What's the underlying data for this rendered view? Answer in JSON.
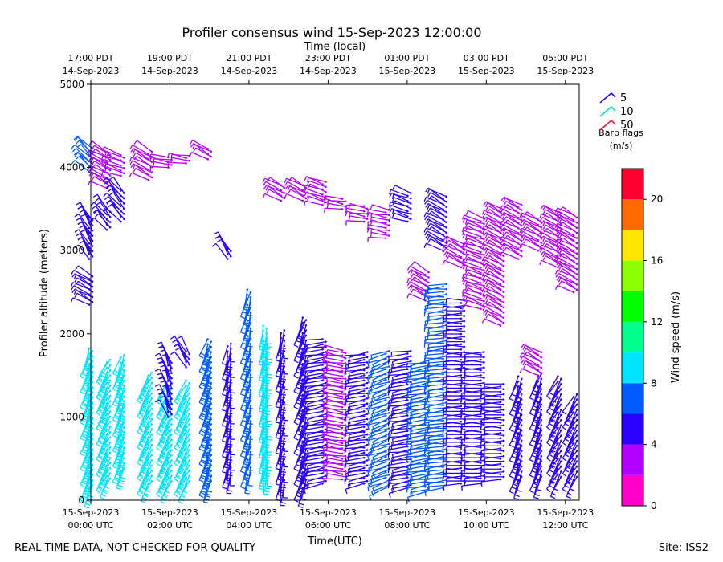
{
  "chart_data": {
    "type": "wind_barb_profile",
    "title": "Profiler consensus wind 15-Sep-2023 12:00:00",
    "top_axis_label": "Time (local)",
    "xlabel": "Time(UTC)",
    "ylabel": "Profiler altitude (meters)",
    "ylim": [
      0,
      5000
    ],
    "xlim_hours_utc": [
      0,
      12.35
    ],
    "y_ticks": [
      0,
      1000,
      2000,
      3000,
      4000,
      5000
    ],
    "x_ticks": [
      {
        "h": 0,
        "line1": "15-Sep-2023",
        "line2": "00:00 UTC"
      },
      {
        "h": 2,
        "line1": "15-Sep-2023",
        "line2": "02:00 UTC"
      },
      {
        "h": 4,
        "line1": "15-Sep-2023",
        "line2": "04:00 UTC"
      },
      {
        "h": 6,
        "line1": "15-Sep-2023",
        "line2": "06:00 UTC"
      },
      {
        "h": 8,
        "line1": "15-Sep-2023",
        "line2": "08:00 UTC"
      },
      {
        "h": 10,
        "line1": "15-Sep-2023",
        "line2": "10:00 UTC"
      },
      {
        "h": 12,
        "line1": "15-Sep-2023",
        "line2": "12:00 UTC"
      }
    ],
    "top_ticks": [
      {
        "h": 0,
        "line1": "17:00 PDT",
        "line2": "14-Sep-2023"
      },
      {
        "h": 2,
        "line1": "19:00 PDT",
        "line2": "14-Sep-2023"
      },
      {
        "h": 4,
        "line1": "21:00 PDT",
        "line2": "14-Sep-2023"
      },
      {
        "h": 6,
        "line1": "23:00 PDT",
        "line2": "14-Sep-2023"
      },
      {
        "h": 8,
        "line1": "01:00 PDT",
        "line2": "15-Sep-2023"
      },
      {
        "h": 10,
        "line1": "03:00 PDT",
        "line2": "15-Sep-2023"
      },
      {
        "h": 12,
        "line1": "05:00 PDT",
        "line2": "15-Sep-2023"
      }
    ],
    "barb_legend": {
      "items": [
        {
          "label": "5",
          "color": "#2a00ee"
        },
        {
          "label": "10",
          "color": "#00e5a0"
        },
        {
          "label": "50",
          "color": "#ff1040"
        }
      ],
      "title": "Barb flags",
      "units": "(m/s)"
    },
    "colorbar": {
      "label": "Wind speed (m/s)",
      "vmin": 0,
      "vmax": 22,
      "ticks": [
        0,
        4,
        8,
        12,
        16,
        20
      ],
      "bins": [
        {
          "lo": 0,
          "hi": 2,
          "color": "#ff00c8"
        },
        {
          "lo": 2,
          "hi": 4,
          "color": "#b400ff"
        },
        {
          "lo": 4,
          "hi": 6,
          "color": "#2a00ff"
        },
        {
          "lo": 6,
          "hi": 8,
          "color": "#005cff"
        },
        {
          "lo": 8,
          "hi": 10,
          "color": "#00e5ff"
        },
        {
          "lo": 10,
          "hi": 12,
          "color": "#00ff8c"
        },
        {
          "lo": 12,
          "hi": 14,
          "color": "#00ff00"
        },
        {
          "lo": 14,
          "hi": 16,
          "color": "#8cff00"
        },
        {
          "lo": 16,
          "hi": 18,
          "color": "#ffe600"
        },
        {
          "lo": 18,
          "hi": 20,
          "color": "#ff6a00"
        },
        {
          "lo": 20,
          "hi": 22,
          "color": "#ff0030"
        }
      ]
    },
    "columns": [
      {
        "h": 0.0,
        "segments": [
          [
            150,
            1850,
            8.5,
            200,
            "#00e5ff"
          ],
          [
            2350,
            2700,
            6,
            300,
            "#2a00ff"
          ],
          [
            2900,
            3400,
            6,
            330,
            "#2a00ff"
          ],
          [
            3950,
            4250,
            7,
            315,
            "#005cff"
          ]
        ]
      },
      {
        "h": 0.45,
        "segments": [
          [
            230,
            1700,
            9,
            210,
            "#00e5ff"
          ],
          [
            3250,
            3500,
            6,
            320,
            "#2a00ff"
          ],
          [
            3750,
            4200,
            4,
            300,
            "#b400ff"
          ]
        ]
      },
      {
        "h": 0.8,
        "segments": [
          [
            350,
            1750,
            9,
            200,
            "#00e5ff"
          ],
          [
            3350,
            3750,
            5,
            320,
            "#2a00ff"
          ],
          [
            3900,
            4150,
            4,
            290,
            "#b400ff"
          ]
        ]
      },
      {
        "h": 1.5,
        "segments": [
          [
            200,
            1550,
            7.5,
            210,
            "#00e5ff"
          ],
          [
            3850,
            4200,
            4,
            300,
            "#b400ff"
          ]
        ]
      },
      {
        "h": 2.0,
        "segments": [
          [
            200,
            1450,
            8.5,
            210,
            "#00e5ff"
          ],
          [
            1700,
            1000,
            5,
            340,
            "#2a00ff"
          ],
          [
            4000,
            4150,
            3,
            280,
            "#b400ff"
          ]
        ]
      },
      {
        "h": 2.45,
        "segments": [
          [
            200,
            1450,
            8.5,
            210,
            "#00e5ff"
          ],
          [
            1600,
            1800,
            5,
            330,
            "#2a00ff"
          ],
          [
            4050,
            4150,
            3,
            280,
            "#b400ff"
          ]
        ]
      },
      {
        "h": 3.0,
        "segments": [
          [
            200,
            1950,
            7.5,
            200,
            "#005cff"
          ],
          [
            4100,
            4250,
            3,
            300,
            "#b400ff"
          ]
        ]
      },
      {
        "h": 3.5,
        "segments": [
          [
            300,
            1900,
            6.5,
            190,
            "#2a00ff"
          ],
          [
            2900,
            3050,
            5,
            330,
            "#2a00ff"
          ]
        ]
      },
      {
        "h": 4.0,
        "segments": [
          [
            300,
            2550,
            6.5,
            195,
            "#005cff"
          ]
        ]
      },
      {
        "h": 4.4,
        "segments": [
          [
            300,
            2100,
            7.5,
            185,
            "#00e5ff"
          ]
        ]
      },
      {
        "h": 4.85,
        "segments": [
          [
            150,
            2050,
            6,
            190,
            "#2a00ff"
          ],
          [
            3600,
            3800,
            3,
            300,
            "#b400ff"
          ]
        ]
      },
      {
        "h": 5.4,
        "segments": [
          [
            150,
            2200,
            5,
            200,
            "#2a00ff"
          ],
          [
            3600,
            3800,
            3,
            300,
            "#b400ff"
          ]
        ]
      },
      {
        "h": 5.9,
        "segments": [
          [
            200,
            1950,
            5,
            260,
            "#2a00ff"
          ],
          [
            3550,
            3850,
            3,
            290,
            "#b400ff"
          ]
        ]
      },
      {
        "h": 6.4,
        "segments": [
          [
            250,
            1800,
            4,
            280,
            "#b400ff"
          ],
          [
            3500,
            3650,
            3,
            280,
            "#b400ff"
          ]
        ]
      },
      {
        "h": 6.95,
        "segments": [
          [
            200,
            1800,
            5,
            260,
            "#2a00ff"
          ],
          [
            3350,
            3550,
            3,
            280,
            "#b400ff"
          ]
        ]
      },
      {
        "h": 7.5,
        "segments": [
          [
            150,
            1800,
            7,
            250,
            "#005cff"
          ],
          [
            3150,
            3500,
            3,
            280,
            "#b400ff"
          ]
        ]
      },
      {
        "h": 8.05,
        "segments": [
          [
            150,
            1800,
            5,
            260,
            "#2a00ff"
          ],
          [
            3350,
            3700,
            3,
            290,
            "#2a00ff"
          ]
        ]
      },
      {
        "h": 8.5,
        "segments": [
          [
            100,
            1700,
            7,
            260,
            "#005cff"
          ],
          [
            2400,
            2750,
            3,
            300,
            "#b400ff"
          ]
        ]
      },
      {
        "h": 8.95,
        "segments": [
          [
            150,
            2600,
            7,
            265,
            "#005cff"
          ],
          [
            3000,
            3650,
            4,
            300,
            "#2a00ff"
          ]
        ]
      },
      {
        "h": 9.4,
        "segments": [
          [
            200,
            2400,
            6,
            270,
            "#2a00ff"
          ],
          [
            2800,
            3100,
            3,
            300,
            "#b400ff"
          ]
        ]
      },
      {
        "h": 9.9,
        "segments": [
          [
            200,
            1800,
            5,
            270,
            "#2a00ff"
          ],
          [
            2300,
            3400,
            3,
            290,
            "#b400ff"
          ]
        ]
      },
      {
        "h": 10.4,
        "segments": [
          [
            250,
            1400,
            5,
            270,
            "#2a00ff"
          ],
          [
            2100,
            3500,
            3,
            300,
            "#b400ff"
          ]
        ]
      },
      {
        "h": 10.85,
        "segments": [
          [
            250,
            1500,
            5,
            200,
            "#2a00ff"
          ],
          [
            2900,
            3550,
            3,
            300,
            "#b400ff"
          ]
        ]
      },
      {
        "h": 11.35,
        "segments": [
          [
            250,
            1550,
            4,
            200,
            "#2a00ff"
          ],
          [
            1500,
            1800,
            3,
            300,
            "#b400ff"
          ],
          [
            3000,
            3400,
            3,
            300,
            "#b400ff"
          ]
        ]
      },
      {
        "h": 11.85,
        "segments": [
          [
            250,
            1500,
            4,
            210,
            "#2a00ff"
          ],
          [
            2800,
            3450,
            3,
            300,
            "#b400ff"
          ]
        ]
      },
      {
        "h": 12.25,
        "segments": [
          [
            250,
            1300,
            4,
            210,
            "#2a00ff"
          ],
          [
            2500,
            3450,
            3,
            300,
            "#b400ff"
          ]
        ]
      }
    ]
  },
  "footer": {
    "left": "REAL TIME DATA, NOT CHECKED FOR QUALITY",
    "right": "Site: ISS2"
  }
}
